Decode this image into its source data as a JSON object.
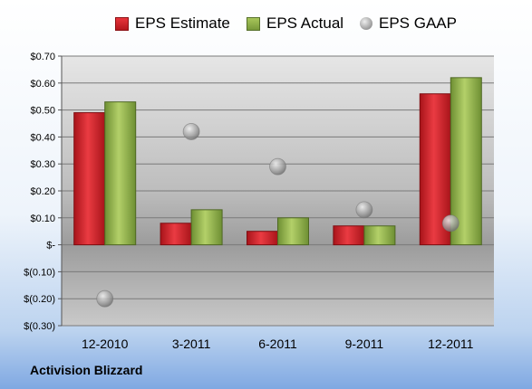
{
  "company": "Activision Blizzard",
  "chart_data": {
    "type": "bar",
    "title": "",
    "xlabel": "",
    "ylabel": "",
    "categories": [
      "12-2010",
      "3-2011",
      "6-2011",
      "9-2011",
      "12-2011"
    ],
    "series": [
      {
        "name": "EPS Estimate",
        "type": "bar",
        "values": [
          0.49,
          0.08,
          0.05,
          0.07,
          0.56
        ],
        "color": "#c8252c"
      },
      {
        "name": "EPS Actual",
        "type": "bar",
        "values": [
          0.53,
          0.13,
          0.1,
          0.07,
          0.62
        ],
        "color": "#8fb04a"
      },
      {
        "name": "EPS GAAP",
        "type": "scatter",
        "values": [
          -0.2,
          0.42,
          0.29,
          0.13,
          0.08
        ],
        "color": "#9a9a9a"
      }
    ],
    "ylim": [
      -0.3,
      0.7
    ],
    "yticks": [
      0.7,
      0.6,
      0.5,
      0.4,
      0.3,
      0.2,
      0.1,
      0.0,
      -0.1,
      -0.2,
      -0.3
    ],
    "ytick_labels": [
      "$0.70",
      "$0.60",
      "$0.50",
      "$0.40",
      "$0.30",
      "$0.20",
      "$0.10",
      "$-",
      "$(0.10)",
      "$(0.20)",
      "$(0.30)"
    ],
    "grid": true,
    "legend_position": "top"
  }
}
